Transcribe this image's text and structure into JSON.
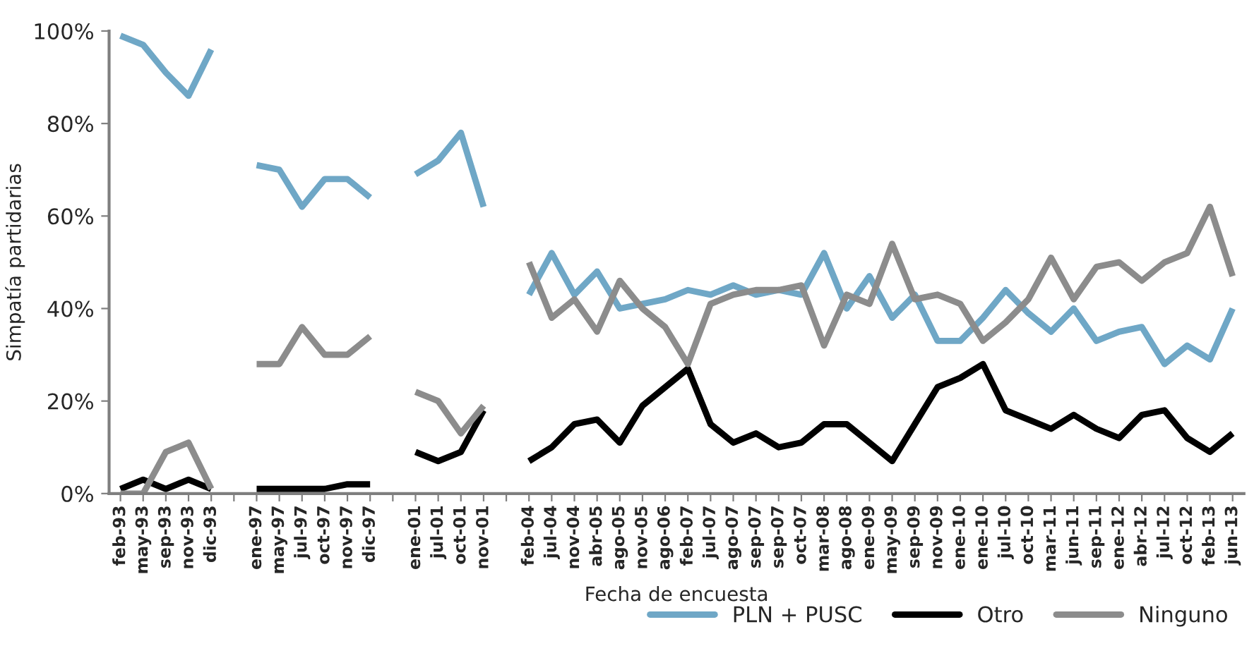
{
  "chart_data": {
    "type": "line",
    "ylabel": "Simpatía partidarias",
    "xlabel": "Fecha de encuesta",
    "categories": [
      "feb-93",
      "may-93",
      "sep-93",
      "nov-93",
      "dic-93",
      null,
      "ene-97",
      "may-97",
      "jul-97",
      "oct-97",
      "nov-97",
      "dic-97",
      null,
      "ene-01",
      "jul-01",
      "oct-01",
      "nov-01",
      null,
      "feb-04",
      "jul-04",
      "nov-04",
      "abr-05",
      "ago-05",
      "nov-05",
      "ago-06",
      "feb-07",
      "jul-07",
      "ago-07",
      "sep-07",
      "sep-07",
      "oct-07",
      "mar-08",
      "ago-08",
      "ene-09",
      "may-09",
      "sep-09",
      "nov-09",
      "ene-10",
      "ene-10",
      "jul-10",
      "oct-10",
      "mar-11",
      "jun-11",
      "sep-11",
      "ene-12",
      "abr-12",
      "jul-12",
      "oct-12",
      "feb-13",
      "jun-13"
    ],
    "series": [
      {
        "name": "PLN + PUSC",
        "color": "#6fa7c6",
        "values": [
          99,
          97,
          91,
          86,
          96,
          null,
          71,
          70,
          62,
          68,
          68,
          64,
          null,
          69,
          72,
          78,
          62,
          null,
          43,
          52,
          43,
          48,
          40,
          41,
          42,
          44,
          43,
          45,
          43,
          44,
          43,
          52,
          40,
          47,
          38,
          43,
          33,
          33,
          38,
          44,
          39,
          35,
          40,
          33,
          35,
          36,
          28,
          32,
          29,
          40
        ]
      },
      {
        "name": "Otro",
        "color": "#000000",
        "values": [
          1,
          3,
          1,
          3,
          1,
          null,
          1,
          1,
          1,
          1,
          2,
          2,
          null,
          9,
          7,
          9,
          18,
          null,
          7,
          10,
          15,
          16,
          11,
          19,
          23,
          27,
          15,
          11,
          13,
          10,
          11,
          15,
          15,
          11,
          7,
          15,
          23,
          25,
          28,
          18,
          16,
          14,
          17,
          14,
          12,
          17,
          18,
          12,
          9,
          13
        ]
      },
      {
        "name": "Ninguno",
        "color": "#8c8c8c",
        "values": [
          0,
          0,
          9,
          11,
          1,
          null,
          28,
          28,
          36,
          30,
          30,
          34,
          null,
          22,
          20,
          13,
          19,
          null,
          50,
          38,
          42,
          35,
          46,
          40,
          36,
          28,
          41,
          43,
          44,
          44,
          45,
          32,
          43,
          41,
          54,
          42,
          43,
          41,
          33,
          37,
          42,
          51,
          42,
          49,
          50,
          46,
          50,
          52,
          62,
          47
        ]
      }
    ],
    "ylim": [
      0,
      100
    ],
    "yticks": [
      {
        "value": 0,
        "label": "0%"
      },
      {
        "value": 20,
        "label": "20%"
      },
      {
        "value": 40,
        "label": "40%"
      },
      {
        "value": 60,
        "label": "60%"
      },
      {
        "value": 80,
        "label": "80%"
      },
      {
        "value": 100,
        "label": "100%"
      }
    ],
    "grid": false,
    "legend": "bottom right",
    "marker": "none",
    "line_style": "solid"
  }
}
